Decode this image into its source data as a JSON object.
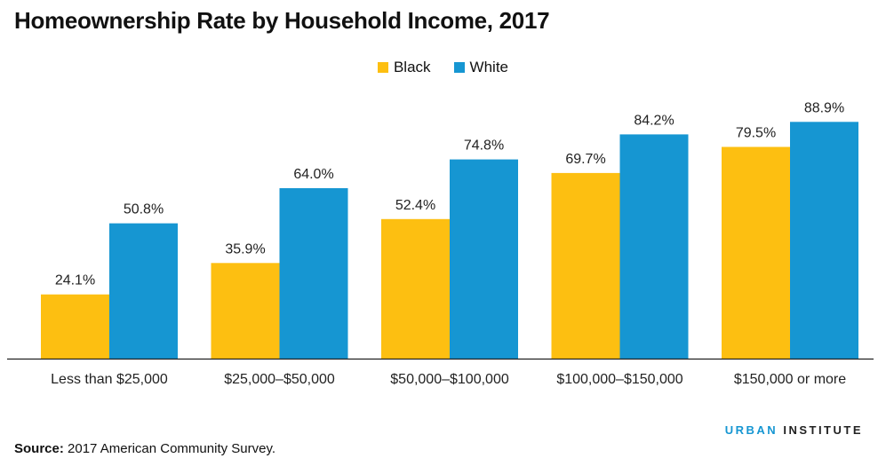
{
  "header": {
    "title": "Homeownership Rate by Household Income, 2017"
  },
  "chart_data": {
    "type": "bar",
    "title": "Homeownership Rate by Household Income, 2017",
    "categories": [
      "Less than $25,000",
      "$25,000–$50,000",
      "$50,000–$100,000",
      "$100,000–$150,000",
      "$150,000 or more"
    ],
    "series": [
      {
        "name": "Black",
        "color": "#fdbf11",
        "values": [
          24.1,
          35.9,
          52.4,
          69.7,
          79.5
        ],
        "labels": [
          "24.1%",
          "35.9%",
          "52.4%",
          "69.7%",
          "79.5%"
        ]
      },
      {
        "name": "White",
        "color": "#1696d2",
        "values": [
          50.8,
          64.0,
          74.8,
          84.2,
          88.9
        ],
        "labels": [
          "50.8%",
          "64.0%",
          "74.8%",
          "84.2%",
          "88.9%"
        ]
      }
    ],
    "xlabel": "",
    "ylabel": "",
    "ylim": [
      0,
      100
    ],
    "grid": false,
    "legend_position": "top-center"
  },
  "footer": {
    "source_label": "Source:",
    "source_text": "2017 American Community Survey.",
    "brand_first": "URBAN",
    "brand_second": "INSTITUTE"
  }
}
